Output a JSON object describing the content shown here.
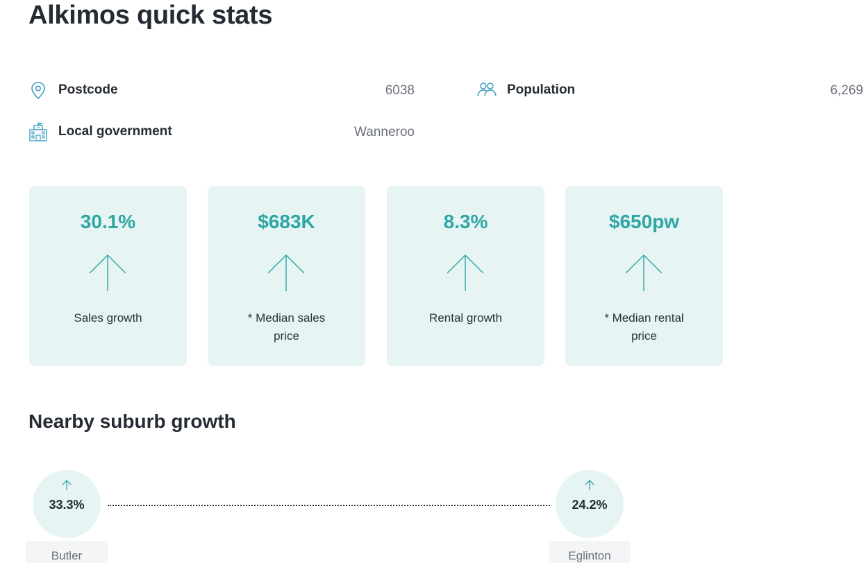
{
  "page_title": "Alkimos quick stats",
  "stats": {
    "postcode": {
      "label": "Postcode",
      "value": "6038",
      "icon": "map-pin-icon"
    },
    "population": {
      "label": "Population",
      "value": "6,269",
      "icon": "people-icon"
    },
    "local_government": {
      "label": "Local government",
      "value": "Wanneroo",
      "icon": "building-icon"
    }
  },
  "cards": [
    {
      "value": "30.1%",
      "label": "Sales growth",
      "icon": "arrow-up-icon"
    },
    {
      "value": "$683K",
      "label": "* Median sales price",
      "icon": "arrow-up-icon"
    },
    {
      "value": "8.3%",
      "label": "Rental growth",
      "icon": "arrow-up-icon"
    },
    {
      "value": "$650pw",
      "label": "* Median rental price",
      "icon": "arrow-up-icon"
    }
  ],
  "nearby": {
    "title": "Nearby suburb growth",
    "suburbs": [
      {
        "name": "Butler",
        "growth": "33.3%",
        "icon": "arrow-up-icon"
      },
      {
        "name": "Eglinton",
        "growth": "24.2%",
        "icon": "arrow-up-icon"
      }
    ]
  },
  "colors": {
    "accent": "#2ea6a3",
    "card_bg": "#e6f4f4",
    "icon": "#3a9fc4",
    "heading": "#252b33",
    "muted": "#6b7079"
  }
}
